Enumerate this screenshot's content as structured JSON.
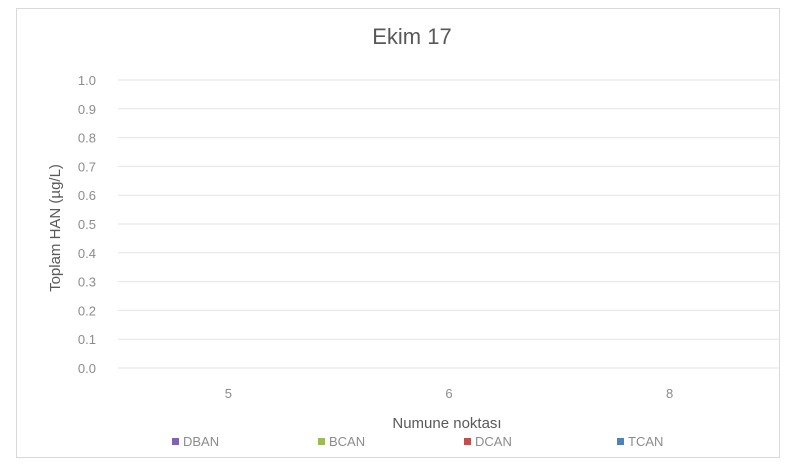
{
  "chart_data": {
    "type": "bar",
    "title": "Ekim 17",
    "xlabel": "Numune noktası",
    "ylabel": "Toplam HAN (µg/L)",
    "categories": [
      "5",
      "6",
      "8"
    ],
    "ylim": [
      0,
      1.0
    ],
    "yticks": [
      "0.0",
      "0.1",
      "0.2",
      "0.3",
      "0.4",
      "0.5",
      "0.6",
      "0.7",
      "0.8",
      "0.9",
      "1.0"
    ],
    "grid": true,
    "legend_position": "bottom",
    "series": [
      {
        "name": "DBAN",
        "color": "#7f63b5",
        "values": [
          0,
          0,
          0
        ]
      },
      {
        "name": "BCAN",
        "color": "#9bbb59",
        "values": [
          0,
          0,
          0
        ]
      },
      {
        "name": "DCAN",
        "color": "#c0504d",
        "values": [
          0,
          0,
          0
        ]
      },
      {
        "name": "TCAN",
        "color": "#4f81bd",
        "values": [
          0,
          0,
          0
        ]
      }
    ]
  }
}
